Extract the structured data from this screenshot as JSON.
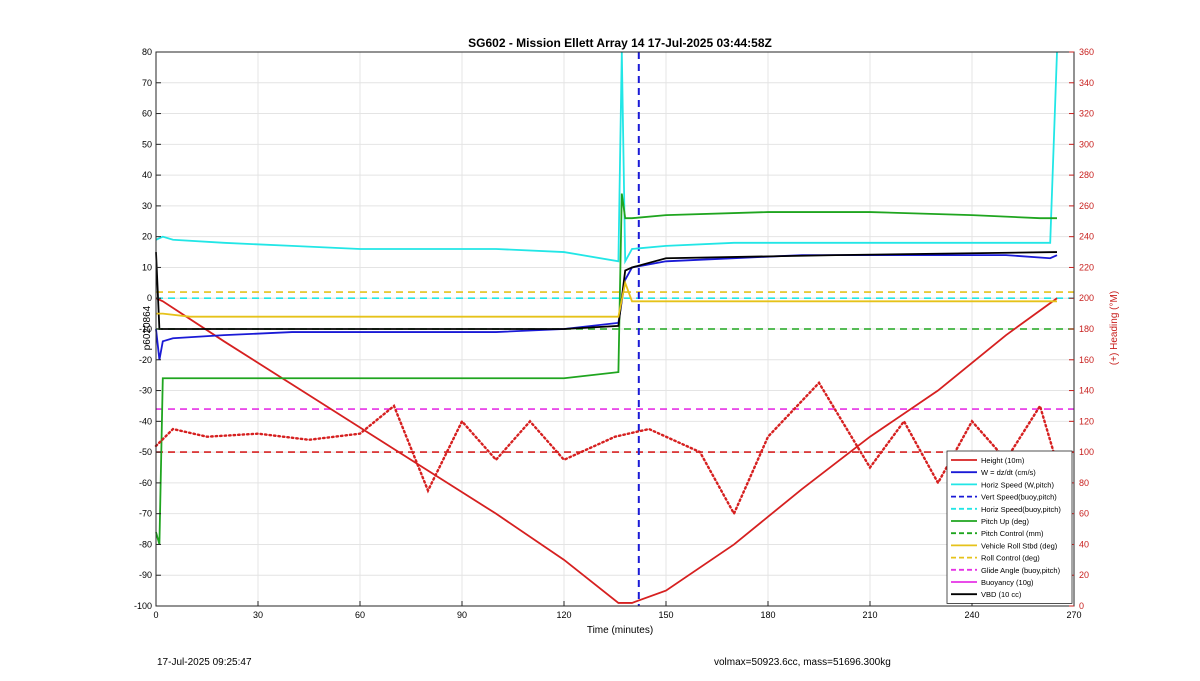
{
  "chart_data": {
    "type": "line",
    "title": "SG602 - Mission Ellett Array 14 17-Jul-2025 03:44:58Z",
    "xlabel": "Time (minutes)",
    "ylabel": "p6020864",
    "ylabel_right": "(+) Heading (°M)",
    "xlim": [
      0,
      270
    ],
    "ylim": [
      -100,
      80
    ],
    "ylim_right": [
      0,
      360
    ],
    "xticks": [
      0,
      30,
      60,
      90,
      120,
      150,
      180,
      210,
      240,
      270
    ],
    "yticks": [
      -100,
      -90,
      -80,
      -70,
      -60,
      -50,
      -40,
      -30,
      -20,
      -10,
      0,
      10,
      20,
      30,
      40,
      50,
      60,
      70,
      80
    ],
    "yticks_right": [
      0,
      20,
      40,
      60,
      80,
      100,
      120,
      140,
      160,
      180,
      200,
      220,
      240,
      260,
      280,
      300,
      320,
      340,
      360
    ],
    "grid": true,
    "legend_position": "bottom-right",
    "legend": [
      {
        "label": "Height (10m)",
        "color": "#d62020",
        "style": "solid"
      },
      {
        "label": "W = dz/dt (cm/s)",
        "color": "#1a1ad6",
        "style": "solid"
      },
      {
        "label": "Horiz Speed (W,pitch)",
        "color": "#22e6e6",
        "style": "solid"
      },
      {
        "label": "Vert Speed(buoy,pitch)",
        "color": "#1a1ad6",
        "style": "dashed"
      },
      {
        "label": "Horiz Speed(buoy,pitch)",
        "color": "#22e6e6",
        "style": "dashed"
      },
      {
        "label": "Pitch Up (deg)",
        "color": "#1fa51f",
        "style": "solid"
      },
      {
        "label": "Pitch Control (mm)",
        "color": "#1fa51f",
        "style": "dashed"
      },
      {
        "label": "Vehicle Roll Stbd (deg)",
        "color": "#e6c21a",
        "style": "solid"
      },
      {
        "label": "Roll Control (deg)",
        "color": "#e6c21a",
        "style": "dashed"
      },
      {
        "label": "Glide Angle (buoy,pitch)",
        "color": "#e632e6",
        "style": "dashed"
      },
      {
        "label": "Buoyancy (10g)",
        "color": "#e632e6",
        "style": "solid"
      },
      {
        "label": "VBD (10 cc)",
        "color": "#000000",
        "style": "solid"
      }
    ],
    "series": [
      {
        "name": "Height (10m)",
        "x": [
          0,
          2,
          20,
          40,
          60,
          80,
          100,
          120,
          136,
          140,
          150,
          170,
          190,
          210,
          230,
          250,
          265
        ],
        "y": [
          0,
          -1,
          -14,
          -28,
          -42,
          -56,
          -70,
          -85,
          -99,
          -99,
          -95,
          -80,
          -62,
          -45,
          -30,
          -12,
          0
        ]
      },
      {
        "name": "W = dz/dt (cm/s)",
        "x": [
          0,
          1,
          2,
          5,
          20,
          40,
          60,
          80,
          100,
          120,
          136,
          138,
          140,
          150,
          170,
          190,
          210,
          230,
          250,
          263,
          265
        ],
        "y": [
          -10,
          -20,
          -14,
          -13,
          -12,
          -11,
          -11,
          -11,
          -11,
          -10,
          -8,
          6,
          10,
          12,
          13,
          14,
          14,
          14,
          14,
          13,
          14
        ]
      },
      {
        "name": "Horiz Speed (W,pitch)",
        "x": [
          0,
          2,
          5,
          20,
          40,
          60,
          80,
          100,
          120,
          136,
          137,
          138,
          140,
          150,
          170,
          190,
          210,
          230,
          250,
          263,
          265
        ],
        "y": [
          19,
          20,
          19,
          18,
          17,
          16,
          16,
          16,
          15,
          12,
          80,
          12,
          16,
          17,
          18,
          18,
          18,
          18,
          18,
          18,
          80
        ]
      },
      {
        "name": "Pitch Up (deg)",
        "x": [
          0,
          1,
          2,
          5,
          30,
          60,
          90,
          120,
          136,
          137,
          138,
          140,
          150,
          180,
          210,
          240,
          260,
          265
        ],
        "y": [
          -76,
          -80,
          -26,
          -26,
          -26,
          -26,
          -26,
          -26,
          -24,
          34,
          26,
          26,
          27,
          28,
          28,
          27,
          26,
          26
        ]
      },
      {
        "name": "VBD (10 cc)",
        "x": [
          0,
          1,
          2,
          60,
          120,
          136,
          138,
          140,
          150,
          200,
          265
        ],
        "y": [
          15,
          -10,
          -10,
          -10,
          -10,
          -9,
          9,
          10,
          13,
          14,
          15
        ]
      },
      {
        "name": "Vehicle Roll Stbd (deg)",
        "x": [
          0,
          2,
          10,
          60,
          120,
          136,
          138,
          140,
          150,
          200,
          265
        ],
        "y": [
          -5,
          -5,
          -6,
          -6,
          -6,
          -6,
          5,
          -1,
          -1,
          -1,
          -1
        ]
      },
      {
        "name": "Heading (°M)",
        "axis": "right",
        "x": [
          0,
          5,
          15,
          30,
          45,
          60,
          70,
          80,
          90,
          100,
          110,
          120,
          135,
          145,
          160,
          170,
          180,
          195,
          210,
          220,
          230,
          240,
          250,
          260,
          266
        ],
        "y": [
          104,
          115,
          110,
          112,
          108,
          112,
          130,
          75,
          120,
          95,
          120,
          95,
          110,
          115,
          100,
          60,
          110,
          145,
          90,
          120,
          80,
          120,
          95,
          130,
          85
        ]
      }
    ],
    "hlines": [
      {
        "name": "Roll Control (deg)",
        "y": 2
      },
      {
        "name": "Pitch Control (mm)",
        "y": -10
      },
      {
        "name": "Glide Angle (buoy,pitch)",
        "y": -36
      },
      {
        "name": "Horiz Speed(buoy,pitch)",
        "y": 0
      },
      {
        "name": "Heading (°M) reference",
        "axis": "right",
        "y": 100
      }
    ],
    "vlines": [
      {
        "name": "Vert Speed(buoy,pitch)",
        "x": 142
      }
    ]
  },
  "footer": {
    "timestamp": "17-Jul-2025 09:25:47",
    "volmax_mass": "volmax=50923.6cc, mass=51696.300kg"
  }
}
